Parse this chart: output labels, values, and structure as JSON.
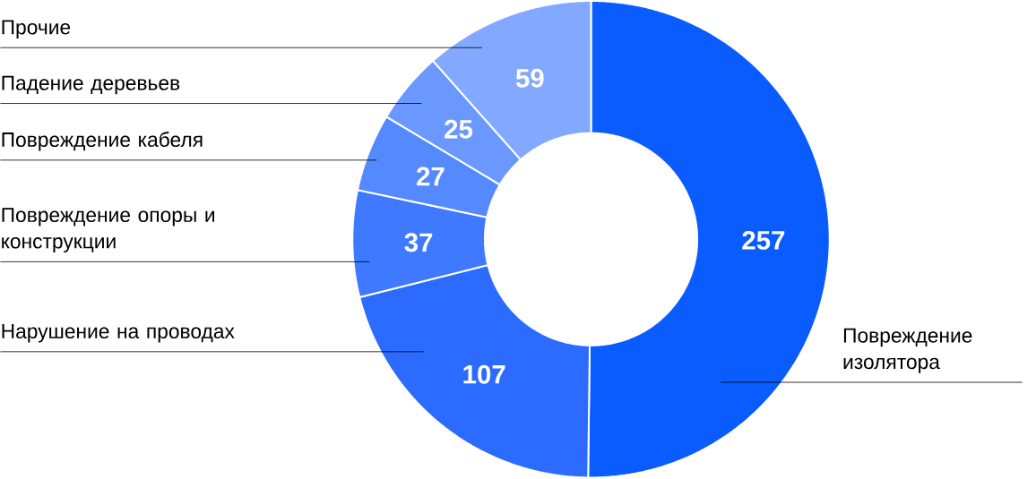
{
  "chart_data": {
    "type": "donut",
    "categories": [
      "Повреждение изолятора",
      "Нарушение на проводах",
      "Повреждение опоры и конструкции",
      "Повреждение кабеля",
      "Падение деревьев",
      "Прочие"
    ],
    "values": [
      257,
      107,
      37,
      27,
      25,
      59
    ],
    "colors": [
      "#0a5cff",
      "#2b6bff",
      "#3f79ff",
      "#5589ff",
      "#6b98ff",
      "#82a9ff"
    ],
    "data_labels": true
  }
}
